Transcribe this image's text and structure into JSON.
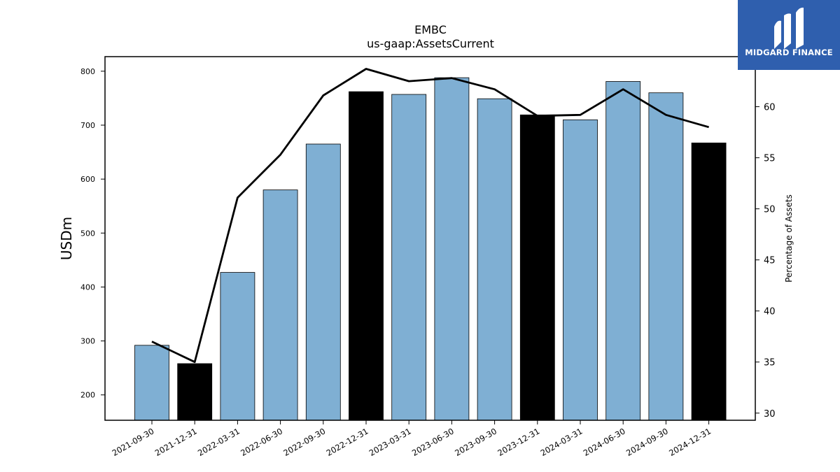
{
  "brand": {
    "name": "MIDGARD FINANCE",
    "bg_color": "#2f5fae"
  },
  "chart_data": {
    "type": "bar",
    "title": "EMBC",
    "subtitle": "us-gaap:AssetsCurrent",
    "ylabel": "USDm",
    "y2label": "Percentage of Assets",
    "categories": [
      "2021-09-30",
      "2021-12-31",
      "2022-03-31",
      "2022-06-30",
      "2022-09-30",
      "2022-12-31",
      "2023-03-31",
      "2023-06-30",
      "2023-09-30",
      "2023-12-31",
      "2024-03-31",
      "2024-06-30",
      "2024-09-30",
      "2024-12-31"
    ],
    "series": [
      {
        "type": "bar",
        "values": [
          292,
          258,
          427,
          580,
          665,
          762,
          757,
          788,
          749,
          719,
          710,
          781,
          760,
          667
        ],
        "highlight": [
          false,
          true,
          false,
          false,
          false,
          true,
          false,
          false,
          false,
          true,
          false,
          false,
          false,
          true
        ],
        "color": "#7fafd3",
        "highlight_color": "#000000"
      },
      {
        "type": "line",
        "axis": "right",
        "values": [
          37.0,
          35.0,
          51.1,
          55.3,
          61.1,
          63.7,
          62.5,
          62.8,
          61.7,
          59.1,
          59.2,
          61.7,
          59.2,
          58.0
        ],
        "color": "#000000"
      }
    ],
    "yticks": [
      200,
      300,
      400,
      500,
      600,
      700,
      800
    ],
    "ylim": [
      153,
      827
    ],
    "y2ticks": [
      30,
      35,
      40,
      45,
      50,
      55,
      60
    ],
    "y2lim": [
      29.3,
      64.9
    ],
    "grid": false
  }
}
